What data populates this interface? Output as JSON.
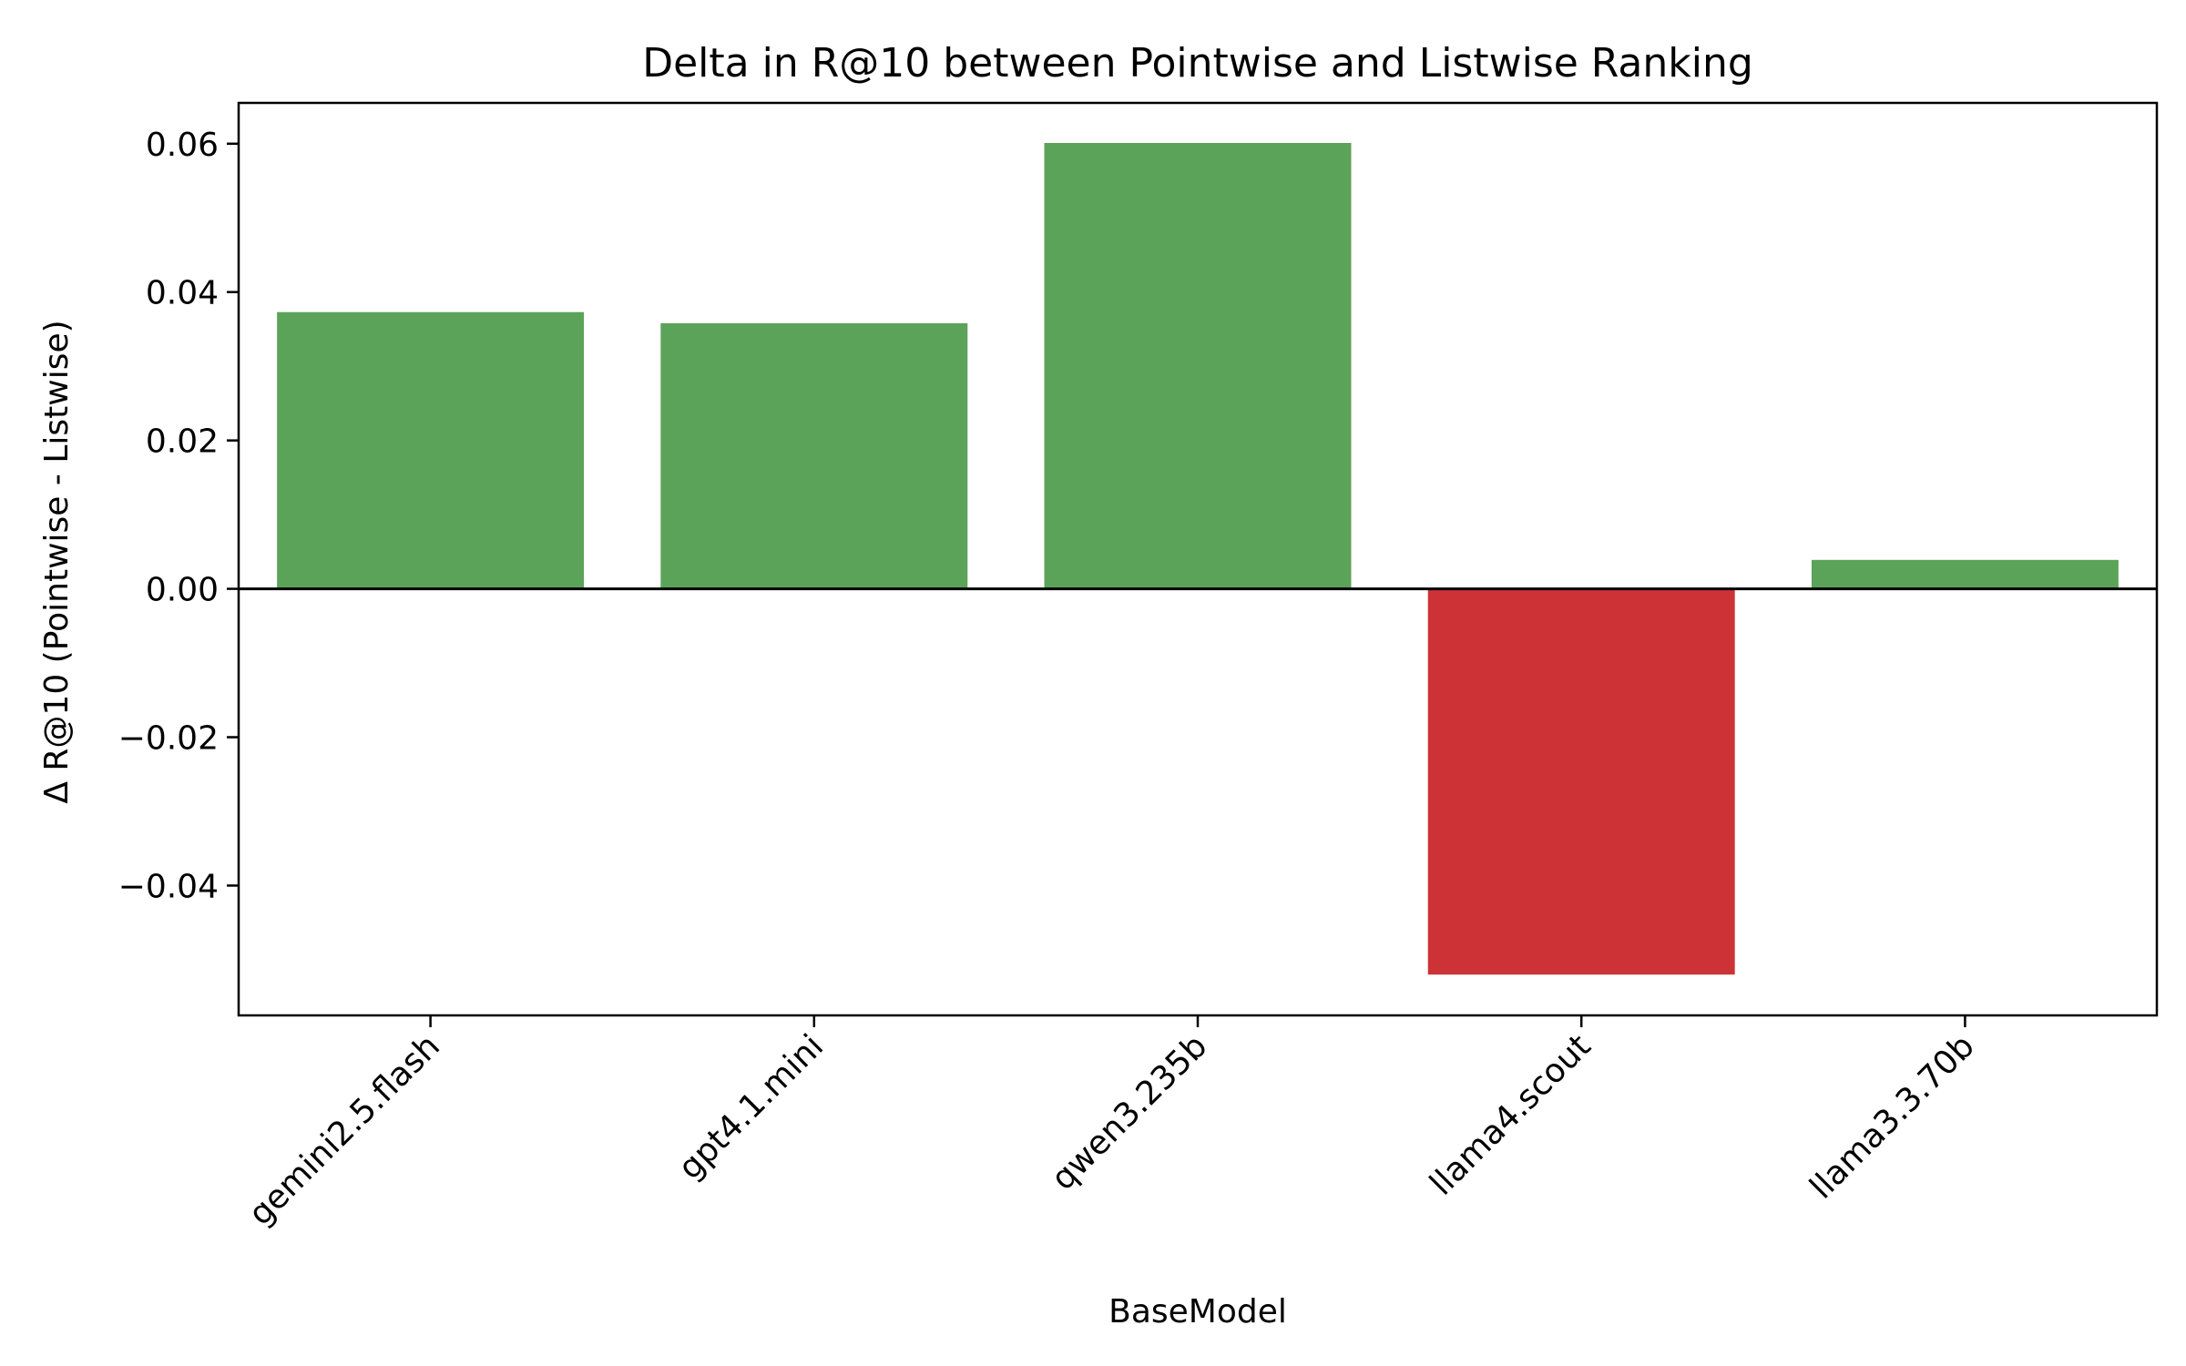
{
  "chart_data": {
    "type": "bar",
    "title": "Delta in R@10 between Pointwise and Listwise Ranking",
    "xlabel": "BaseModel",
    "ylabel": "Δ R@10 (Pointwise - Listwise)",
    "categories": [
      "gemini2.5.flash",
      "gpt4.1.mini",
      "qwen3.235b",
      "llama4.scout",
      "llama3.3.70b"
    ],
    "values": [
      0.0373,
      0.0358,
      0.0601,
      -0.052,
      0.0039
    ],
    "ylim": [
      -0.0575,
      0.0655
    ],
    "yticks": [
      -0.04,
      -0.02,
      0.0,
      0.02,
      0.04,
      0.06
    ],
    "ytick_labels": [
      "−0.04",
      "−0.02",
      "0.00",
      "0.02",
      "0.04",
      "0.06"
    ],
    "grid": false,
    "legend": "none",
    "colors": {
      "positive": "#5ba358",
      "negative": "#cd3336",
      "zero_line": "#000000"
    }
  }
}
